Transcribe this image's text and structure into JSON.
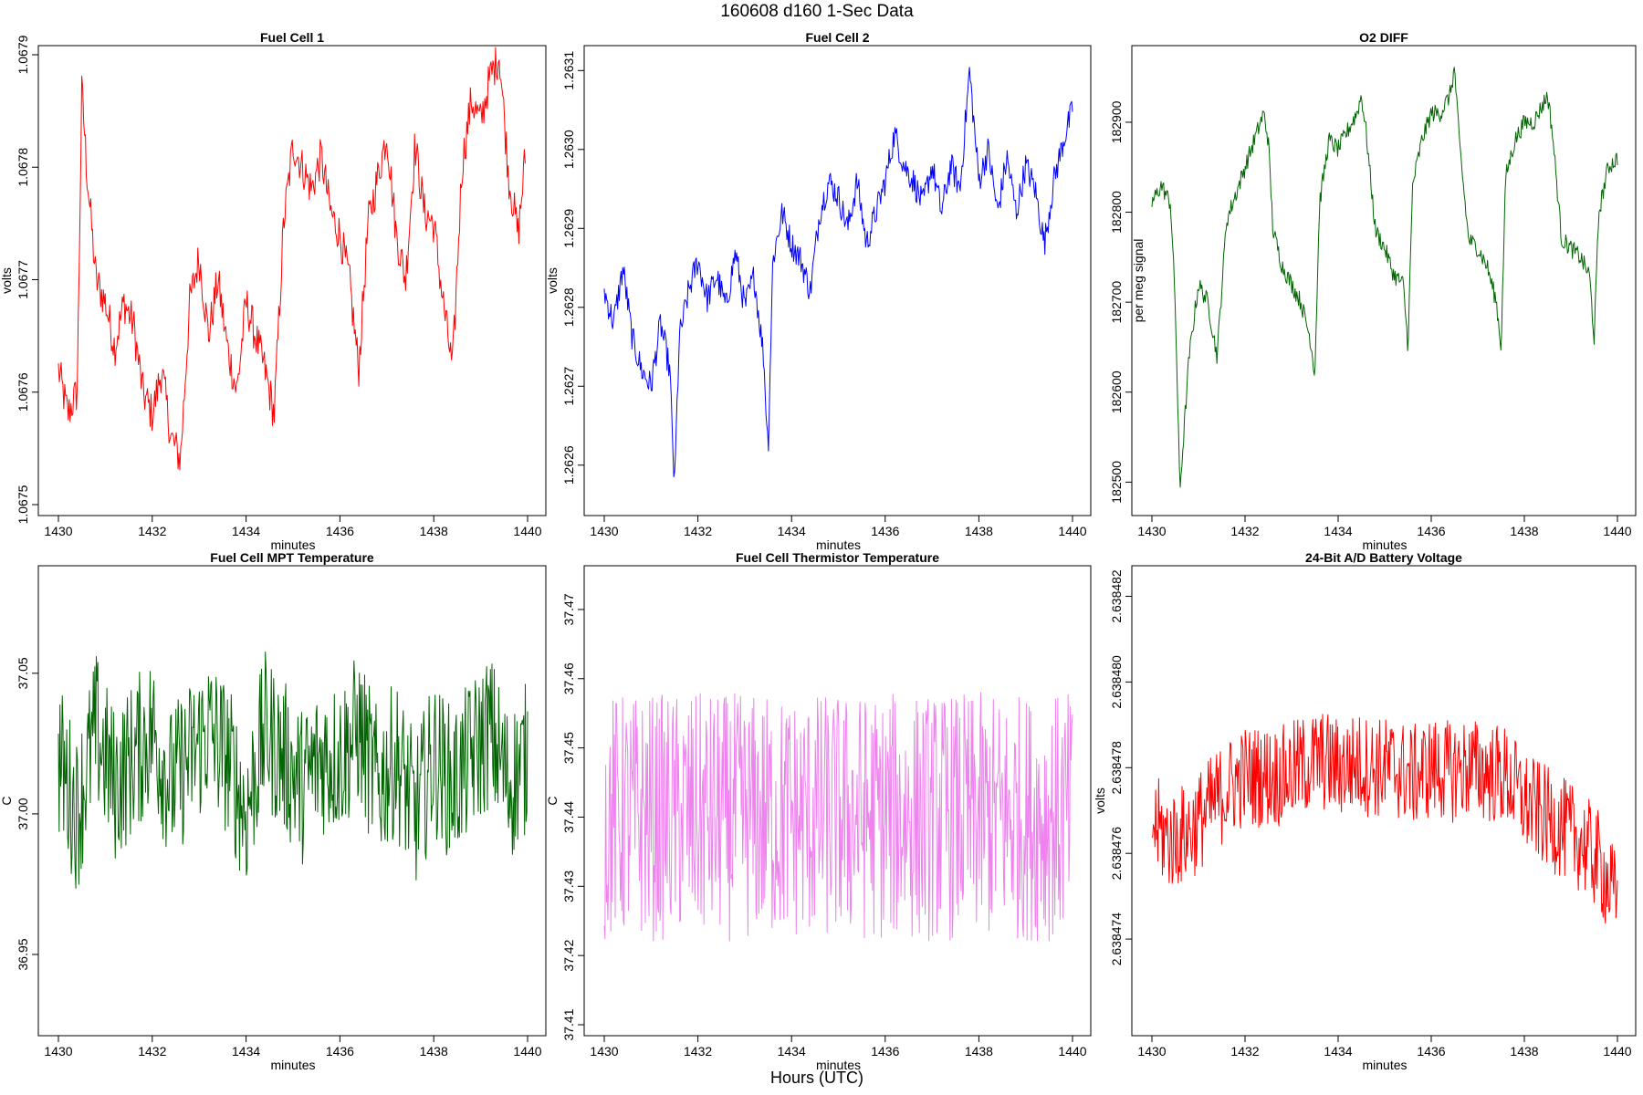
{
  "figure": {
    "title": "160608   d160   1-Sec Data",
    "outer_xlabel": "Hours (UTC)"
  },
  "chart_data": [
    {
      "type": "line",
      "title": "Fuel Cell 1",
      "xlabel": "minutes",
      "ylabel": "volts",
      "color": "#ff0000",
      "xlim": [
        1430,
        1440
      ],
      "ylim": [
        1.0675,
        1.0679
      ],
      "xticks": [
        "1430",
        "1432",
        "1434",
        "1436",
        "1438",
        "1440"
      ],
      "yticks": [
        "1.0675",
        "1.0676",
        "1.0677",
        "1.0678",
        "1.0679"
      ],
      "series": [
        {
          "x": [
            1430.0,
            1430.2,
            1430.4,
            1430.5,
            1430.6,
            1430.8,
            1431.0,
            1431.2,
            1431.4,
            1431.6,
            1431.8,
            1432.0,
            1432.2,
            1432.4,
            1432.6,
            1432.8,
            1433.0,
            1433.2,
            1433.4,
            1433.6,
            1433.8,
            1434.0,
            1434.2,
            1434.4,
            1434.6,
            1434.8,
            1435.0,
            1435.2,
            1435.4,
            1435.6,
            1435.8,
            1436.0,
            1436.2,
            1436.4,
            1436.6,
            1436.8,
            1437.0,
            1437.2,
            1437.4,
            1437.6,
            1437.8,
            1438.0,
            1438.2,
            1438.4,
            1438.6,
            1438.8,
            1439.0,
            1439.2,
            1439.4,
            1439.6,
            1439.8,
            1439.95
          ],
          "y": [
            1.06762,
            1.06758,
            1.0676,
            1.06787,
            1.0678,
            1.0677,
            1.06768,
            1.06764,
            1.06768,
            1.06766,
            1.0676,
            1.06758,
            1.06762,
            1.06756,
            1.06754,
            1.06768,
            1.06772,
            1.06765,
            1.0677,
            1.06764,
            1.0676,
            1.06768,
            1.06765,
            1.06762,
            1.06758,
            1.06775,
            1.06782,
            1.0678,
            1.06778,
            1.06781,
            1.06776,
            1.06774,
            1.0677,
            1.06762,
            1.06775,
            1.06779,
            1.06783,
            1.06774,
            1.0677,
            1.06782,
            1.06776,
            1.06775,
            1.06768,
            1.06762,
            1.0678,
            1.06786,
            1.06784,
            1.06788,
            1.0679,
            1.06779,
            1.06774,
            1.06781
          ]
        }
      ]
    },
    {
      "type": "line",
      "title": "Fuel Cell 2",
      "xlabel": "minutes",
      "ylabel": "volts",
      "color": "#0000ff",
      "xlim": [
        1430,
        1440
      ],
      "ylim": [
        1.26255,
        1.26312
      ],
      "xticks": [
        "1430",
        "1432",
        "1434",
        "1436",
        "1438",
        "1440"
      ],
      "yticks": [
        "1.2626",
        "1.2627",
        "1.2628",
        "1.2629",
        "1.2630",
        "1.2631"
      ],
      "series": [
        {
          "x": [
            1430.0,
            1430.2,
            1430.4,
            1430.6,
            1430.8,
            1431.0,
            1431.2,
            1431.4,
            1431.5,
            1431.6,
            1431.8,
            1432.0,
            1432.2,
            1432.4,
            1432.6,
            1432.8,
            1433.0,
            1433.2,
            1433.4,
            1433.5,
            1433.6,
            1433.8,
            1434.0,
            1434.2,
            1434.4,
            1434.6,
            1434.8,
            1435.0,
            1435.2,
            1435.4,
            1435.6,
            1435.8,
            1436.0,
            1436.2,
            1436.4,
            1436.6,
            1436.8,
            1437.0,
            1437.2,
            1437.4,
            1437.6,
            1437.8,
            1438.0,
            1438.2,
            1438.4,
            1438.6,
            1438.8,
            1439.0,
            1439.2,
            1439.4,
            1439.6,
            1439.8,
            1440.0
          ],
          "y": [
            1.26282,
            1.26278,
            1.26285,
            1.26276,
            1.26272,
            1.2627,
            1.26278,
            1.26272,
            1.26257,
            1.26276,
            1.26282,
            1.26286,
            1.26281,
            1.26284,
            1.2628,
            1.26287,
            1.2628,
            1.26284,
            1.26274,
            1.26262,
            1.26286,
            1.26292,
            1.26288,
            1.26286,
            1.26282,
            1.26292,
            1.26296,
            1.26294,
            1.2629,
            1.26296,
            1.26288,
            1.26292,
            1.26296,
            1.26302,
            1.26298,
            1.26296,
            1.26293,
            1.26298,
            1.26292,
            1.26298,
            1.26295,
            1.2631,
            1.26296,
            1.263,
            1.26292,
            1.26299,
            1.26292,
            1.26298,
            1.26295,
            1.26288,
            1.26296,
            1.26301,
            1.26305
          ]
        }
      ]
    },
    {
      "type": "line",
      "title": "O2 DIFF",
      "xlabel": "minutes",
      "ylabel": "per meg signal",
      "color": "#006400",
      "xlim": [
        1430,
        1440
      ],
      "ylim": [
        182475,
        182975
      ],
      "xticks": [
        "1430",
        "1432",
        "1434",
        "1436",
        "1438",
        "1440"
      ],
      "yticks": [
        "182500",
        "182600",
        "182700",
        "182800",
        "182900"
      ],
      "series": [
        {
          "x": [
            1430.0,
            1430.2,
            1430.4,
            1430.5,
            1430.6,
            1430.8,
            1431.0,
            1431.2,
            1431.4,
            1431.6,
            1431.8,
            1432.0,
            1432.2,
            1432.4,
            1432.5,
            1432.6,
            1432.8,
            1433.0,
            1433.2,
            1433.4,
            1433.5,
            1433.6,
            1433.8,
            1434.0,
            1434.2,
            1434.4,
            1434.5,
            1434.6,
            1434.8,
            1435.0,
            1435.2,
            1435.4,
            1435.5,
            1435.6,
            1435.8,
            1436.0,
            1436.2,
            1436.4,
            1436.5,
            1436.6,
            1436.8,
            1437.0,
            1437.2,
            1437.4,
            1437.5,
            1437.6,
            1437.8,
            1438.0,
            1438.2,
            1438.4,
            1438.5,
            1438.6,
            1438.8,
            1439.0,
            1439.2,
            1439.4,
            1439.5,
            1439.6,
            1439.8,
            1440.0
          ],
          "y": [
            182810,
            182830,
            182810,
            182700,
            182490,
            182640,
            182720,
            182700,
            182640,
            182790,
            182820,
            182850,
            182880,
            182910,
            182880,
            182780,
            182740,
            182720,
            182700,
            182660,
            182620,
            182810,
            182880,
            182870,
            182890,
            182910,
            182930,
            182890,
            182780,
            182760,
            182730,
            182720,
            182650,
            182830,
            182880,
            182910,
            182910,
            182930,
            182960,
            182880,
            182770,
            182760,
            182740,
            182700,
            182650,
            182840,
            182880,
            182900,
            182900,
            182920,
            182930,
            182890,
            182770,
            182760,
            182750,
            182730,
            182660,
            182800,
            182850,
            182860
          ]
        }
      ]
    },
    {
      "type": "line",
      "title": "Fuel Cell MPT Temperature",
      "xlabel": "minutes",
      "ylabel": "C",
      "color": "#006400",
      "xlim": [
        1430,
        1440
      ],
      "ylim": [
        36.925,
        37.085
      ],
      "xticks": [
        "1430",
        "1432",
        "1434",
        "1436",
        "1438",
        "1440"
      ],
      "yticks": [
        "36.95",
        "37.00",
        "37.05"
      ],
      "series": [
        {
          "x": [
            1430.0,
            1430.4,
            1430.8,
            1431.2,
            1431.6,
            1432.0,
            1432.4,
            1432.8,
            1433.2,
            1433.6,
            1434.0,
            1434.4,
            1434.8,
            1435.2,
            1435.6,
            1436.0,
            1436.4,
            1436.8,
            1437.2,
            1437.6,
            1438.0,
            1438.4,
            1438.8,
            1439.2,
            1439.6,
            1440.0
          ],
          "y": [
            37.02,
            37.0,
            37.03,
            37.01,
            37.02,
            37.03,
            37.01,
            37.02,
            37.03,
            37.02,
            37.0,
            37.03,
            37.02,
            37.01,
            37.02,
            37.02,
            37.03,
            37.01,
            37.02,
            37.0,
            37.02,
            37.01,
            37.02,
            37.03,
            37.01,
            37.02
          ]
        }
      ]
    },
    {
      "type": "line",
      "title": "Fuel Cell Thermistor Temperature",
      "xlabel": "minutes",
      "ylabel": "C",
      "color": "#ee82ee",
      "xlim": [
        1430,
        1440
      ],
      "ylim": [
        37.41,
        37.475
      ],
      "xticks": [
        "1430",
        "1432",
        "1434",
        "1436",
        "1438",
        "1440"
      ],
      "yticks": [
        "37.41",
        "37.42",
        "37.43",
        "37.44",
        "37.45",
        "37.46",
        "37.47"
      ],
      "series": [
        {
          "x": [
            1430.0,
            1430.4,
            1430.8,
            1431.2,
            1431.6,
            1432.0,
            1432.4,
            1432.8,
            1433.2,
            1433.6,
            1434.0,
            1434.4,
            1434.8,
            1435.2,
            1435.6,
            1436.0,
            1436.4,
            1436.8,
            1437.2,
            1437.6,
            1438.0,
            1438.4,
            1438.8,
            1439.2,
            1439.6,
            1440.0
          ],
          "y": [
            37.44,
            37.44,
            37.44,
            37.44,
            37.44,
            37.44,
            37.44,
            37.44,
            37.44,
            37.44,
            37.44,
            37.44,
            37.44,
            37.44,
            37.44,
            37.44,
            37.44,
            37.44,
            37.44,
            37.44,
            37.44,
            37.44,
            37.44,
            37.44,
            37.44,
            37.44
          ]
        }
      ]
    },
    {
      "type": "line",
      "title": "24-Bit A/D Battery Voltage",
      "xlabel": "minutes",
      "ylabel": "volts",
      "color": "#ff0000",
      "xlim": [
        1430,
        1440
      ],
      "ylim": [
        2.638472,
        2.6384825
      ],
      "xticks": [
        "1430",
        "1432",
        "1434",
        "1436",
        "1438",
        "1440"
      ],
      "yticks": [
        "2.638474",
        "2.638476",
        "2.638478",
        "2.638480",
        "2.638482"
      ],
      "series": [
        {
          "x": [
            1430.0,
            1430.4,
            1430.8,
            1431.2,
            1431.6,
            1432.0,
            1432.4,
            1432.8,
            1433.2,
            1433.6,
            1434.0,
            1434.4,
            1434.8,
            1435.2,
            1435.4,
            1435.6,
            1436.0,
            1436.4,
            1436.8,
            1437.2,
            1437.6,
            1438.0,
            1438.4,
            1438.8,
            1439.2,
            1439.6,
            1440.0
          ],
          "y": [
            2.6384767,
            2.6384763,
            2.6384765,
            2.638477,
            2.6384775,
            2.6384778,
            2.6384778,
            2.6384778,
            2.638478,
            2.6384782,
            2.638478,
            2.6384781,
            2.638478,
            2.638478,
            2.6384779,
            2.6384778,
            2.638478,
            2.6384779,
            2.638478,
            2.6384779,
            2.6384778,
            2.6384772,
            2.6384769,
            2.6384766,
            2.6384763,
            2.6384758,
            2.6384748
          ]
        }
      ]
    }
  ]
}
